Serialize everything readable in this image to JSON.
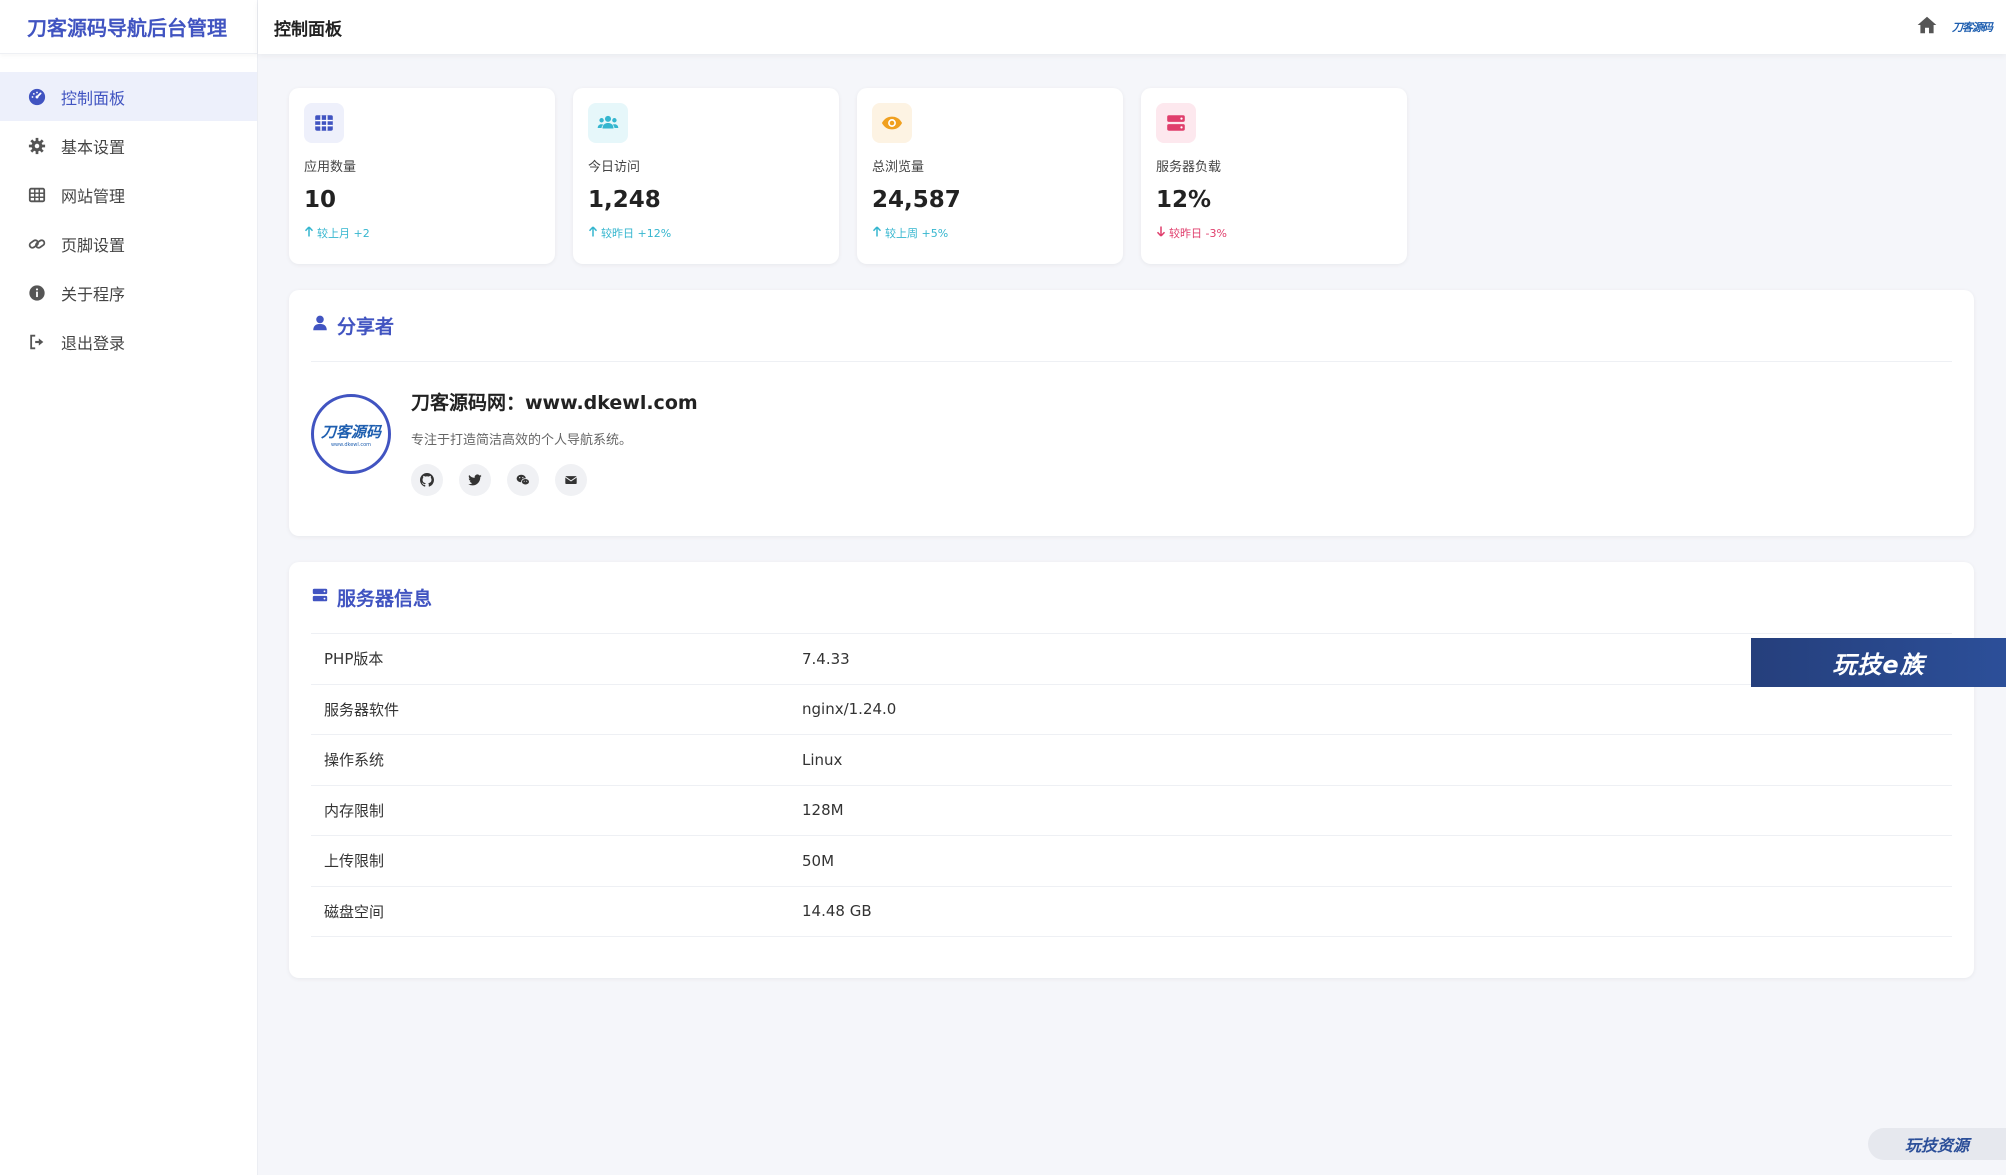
{
  "app": {
    "title": "刀客源码导航后台管理",
    "accent": "#4154c1"
  },
  "header": {
    "page_title": "控制面板",
    "home_icon": "home-icon",
    "logo_text": "刀客源码"
  },
  "sidebar": {
    "items": [
      {
        "label": "控制面板",
        "icon": "dashboard-icon",
        "active": true
      },
      {
        "label": "基本设置",
        "icon": "gear-icon",
        "active": false
      },
      {
        "label": "网站管理",
        "icon": "table-icon",
        "active": false
      },
      {
        "label": "页脚设置",
        "icon": "link-icon",
        "active": false
      },
      {
        "label": "关于程序",
        "icon": "info-icon",
        "active": false
      },
      {
        "label": "退出登录",
        "icon": "logout-icon",
        "active": false
      }
    ]
  },
  "stats": [
    {
      "label": "应用数量",
      "value": "10",
      "change": "较上月 +2",
      "direction": "up",
      "icon": "grid-icon",
      "color": "#4154c1",
      "bg": "#eef0fb"
    },
    {
      "label": "今日访问",
      "value": "1,248",
      "change": "较昨日 +12%",
      "direction": "up",
      "icon": "users-icon",
      "color": "#35b6cf",
      "bg": "#e6f7fa"
    },
    {
      "label": "总浏览量",
      "value": "24,587",
      "change": "较上周 +5%",
      "direction": "up",
      "icon": "eye-icon",
      "color": "#f0a020",
      "bg": "#fdf3e3"
    },
    {
      "label": "服务器负载",
      "value": "12%",
      "change": "较昨日 -3%",
      "direction": "down",
      "icon": "server-icon",
      "color": "#e03e6c",
      "bg": "#fde8ee"
    }
  ],
  "sharer": {
    "title": "分享者",
    "avatar_text": "刀客源码",
    "avatar_sub": "www.dkewl.com",
    "name": "刀客源码网：www.dkewl.com",
    "desc": "专注于打造简洁高效的个人导航系统。",
    "socials": [
      "github-icon",
      "twitter-icon",
      "wechat-icon",
      "mail-icon"
    ]
  },
  "server": {
    "title": "服务器信息",
    "rows": [
      {
        "key": "PHP版本",
        "value": "7.4.33"
      },
      {
        "key": "服务器软件",
        "value": "nginx/1.24.0"
      },
      {
        "key": "操作系统",
        "value": "Linux"
      },
      {
        "key": "内存限制",
        "value": "128M"
      },
      {
        "key": "上传限制",
        "value": "50M"
      },
      {
        "key": "磁盘空间",
        "value": "14.48 GB"
      }
    ]
  },
  "watermarks": {
    "banner": "玩技e族",
    "corner": "玩技资源"
  }
}
